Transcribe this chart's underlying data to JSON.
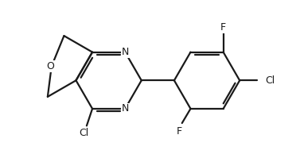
{
  "bg_color": "#ffffff",
  "bond_color": "#1a1a1a",
  "text_color": "#1a1a1a",
  "line_width": 1.6,
  "font_size": 9.0,
  "fig_width": 3.77,
  "fig_height": 1.99,
  "dpi": 100,
  "xlim": [
    0.0,
    10.5
  ],
  "ylim": [
    0.0,
    5.5
  ]
}
